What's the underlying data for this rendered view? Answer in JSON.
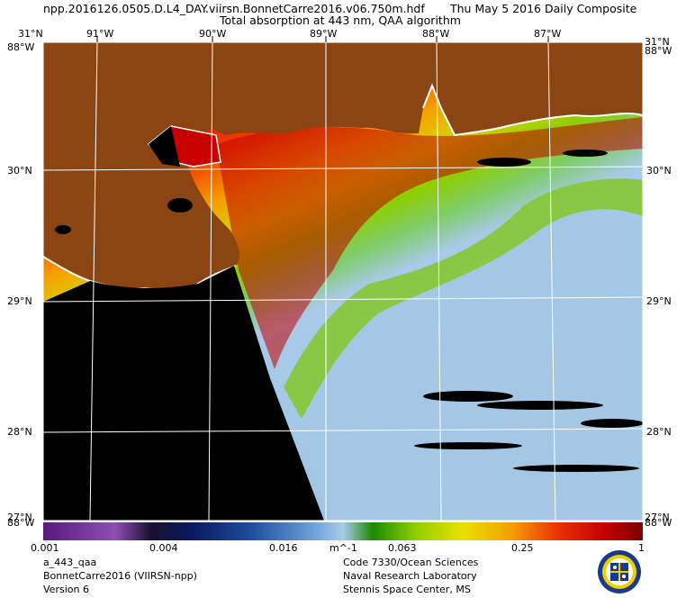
{
  "header": {
    "filename": "npp.2016126.0505.D.L4_DAY.viirsn.BonnetCarre2016.v06.750m.hdf",
    "composite": "Thu May  5 2016 Daily Composite",
    "subtitle": "Total absorption at 443 nm, QAA algorithm"
  },
  "map": {
    "lon_labels": [
      "91°W",
      "90°W",
      "89°W",
      "88°W",
      "87°W"
    ],
    "lat_labels": [
      "30°N",
      "29°N",
      "28°N"
    ],
    "corner_top_left": "31°N",
    "corner_top_right": "31°N",
    "corner_bottom_left": "27°N",
    "corner_bottom_right": "27°N",
    "edge_left": "88°W",
    "edge_right": "88°W",
    "colors": {
      "land": "#8b4513",
      "no_data": "#000000",
      "coast": "#ffffff",
      "high_absorption": "#c40000",
      "mid_absorption": "#f5a000",
      "low_mid_absorption": "#8fce00",
      "low_absorption": "#a8cae8"
    }
  },
  "colorbar": {
    "tick_labels": [
      "0.001",
      "0.004",
      "0.016",
      "0.063",
      "0.25",
      "1"
    ],
    "unit": "m^-1",
    "scale": "log"
  },
  "footer": {
    "left_line1": "a_443_qaa",
    "left_line2": "BonnetCarre2016 (VIIRSN-npp)",
    "left_line3": "Version 6",
    "right_line1": "Code 7330/Ocean Sciences",
    "right_line2": "Naval Research Laboratory",
    "right_line3": "Stennis Space Center, MS",
    "seal_icon": "nrl-seal-icon"
  }
}
